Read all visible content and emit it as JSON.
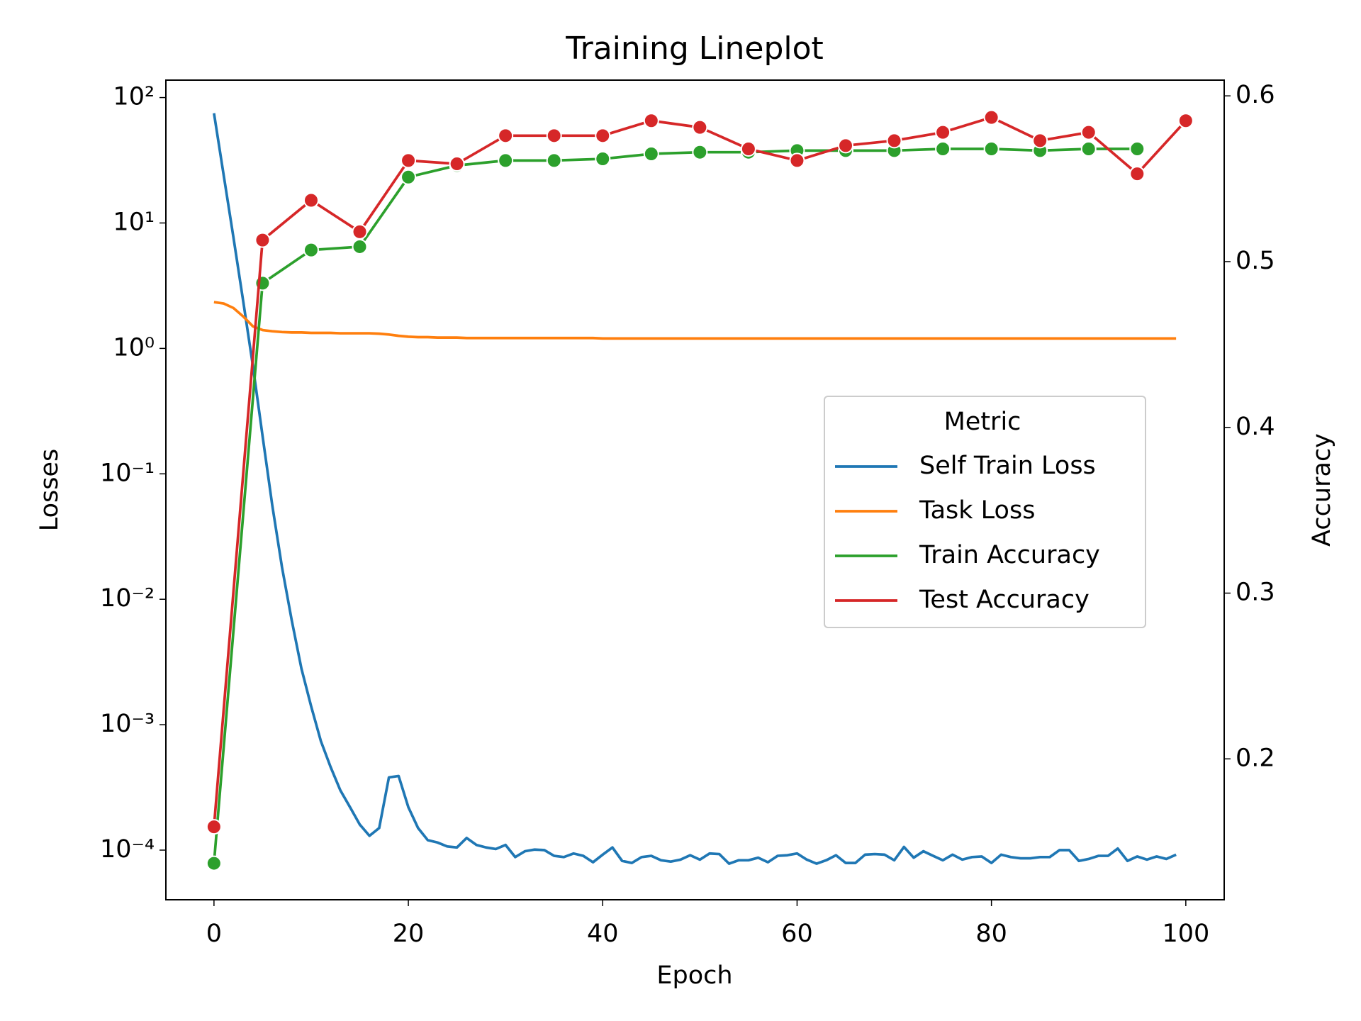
{
  "chart_data": {
    "type": "line",
    "title": "Training Lineplot",
    "xlabel": "Epoch",
    "ylabel": "Losses",
    "y2label": "Accuracy",
    "yscale": "log",
    "legend_title": "Metric",
    "legend_loc": "center right",
    "x": [
      0,
      1,
      2,
      3,
      4,
      5,
      6,
      7,
      8,
      9,
      10,
      11,
      12,
      13,
      14,
      15,
      16,
      17,
      18,
      19,
      20,
      21,
      22,
      23,
      24,
      25,
      26,
      27,
      28,
      29,
      30,
      31,
      32,
      33,
      34,
      35,
      36,
      37,
      38,
      39,
      40,
      41,
      42,
      43,
      44,
      45,
      46,
      47,
      48,
      49,
      50,
      51,
      52,
      53,
      54,
      55,
      56,
      57,
      58,
      59,
      60,
      61,
      62,
      63,
      64,
      65,
      66,
      67,
      68,
      69,
      70,
      71,
      72,
      73,
      74,
      75,
      76,
      77,
      78,
      79,
      80,
      81,
      82,
      83,
      84,
      85,
      86,
      87,
      88,
      89,
      90,
      91,
      92,
      93,
      94,
      95,
      96,
      97,
      98,
      99
    ],
    "xlim": [
      -4.95,
      103.95
    ],
    "xticks": [
      0,
      20,
      40,
      60,
      80,
      100
    ],
    "ylim": [
      4.02e-05,
      137.7
    ],
    "yticks": [
      {
        "value": 0.0001,
        "label": "10⁻⁴"
      },
      {
        "value": 0.001,
        "label": "10⁻³"
      },
      {
        "value": 0.01,
        "label": "10⁻²"
      },
      {
        "value": 0.1,
        "label": "10⁻¹"
      },
      {
        "value": 1,
        "label": "10⁰"
      },
      {
        "value": 10,
        "label": "10¹"
      },
      {
        "value": 100,
        "label": "10²"
      }
    ],
    "y2lim": [
      0.115,
      0.6095
    ],
    "y2ticks": [
      0.2,
      0.3,
      0.4,
      0.5,
      0.6
    ],
    "series": [
      {
        "name": "Self Train Loss",
        "color": "#1f77b4",
        "values": [
          75,
          24,
          7.7,
          2.4,
          0.73,
          0.2,
          0.056,
          0.018,
          0.0068,
          0.0028,
          0.0014,
          0.00074,
          0.00046,
          0.0003,
          0.00022,
          0.00016,
          0.00013,
          0.00015,
          0.00038,
          0.00039,
          0.00022,
          0.00015,
          0.00012,
          0.000115,
          0.000107,
          0.000105,
          0.000125,
          0.00011,
          0.000105,
          0.000102,
          0.00011,
          8.8e-05,
          9.8e-05,
          0.000101,
          0.0001,
          9e-05,
          8.8e-05,
          9.4e-05,
          9e-05,
          8e-05,
          9.2e-05,
          0.000105,
          8.2e-05,
          7.9e-05,
          8.8e-05,
          9e-05,
          8.3e-05,
          8.1e-05,
          8.4e-05,
          9.1e-05,
          8.4e-05,
          9.4e-05,
          9.3e-05,
          7.8e-05,
          8.3e-05,
          8.3e-05,
          8.7e-05,
          8e-05,
          9e-05,
          9.1e-05,
          9.4e-05,
          8.4e-05,
          7.8e-05,
          8.3e-05,
          9.1e-05,
          7.9e-05,
          7.9e-05,
          9.2e-05,
          9.3e-05,
          9.2e-05,
          8.3e-05,
          0.000106,
          8.7e-05,
          9.8e-05,
          9e-05,
          8.3e-05,
          9.2e-05,
          8.4e-05,
          8.8e-05,
          8.9e-05,
          7.9e-05,
          9.2e-05,
          8.8e-05,
          8.6e-05,
          8.6e-05,
          8.8e-05,
          8.8e-05,
          0.0001,
          0.0001,
          8.2e-05,
          8.5e-05,
          9e-05,
          9e-05,
          0.000103,
          8.2e-05,
          8.9e-05,
          8.4e-05,
          8.9e-05,
          8.5e-05,
          9.2e-05
        ]
      },
      {
        "name": "Task Loss",
        "color": "#ff7f0e",
        "values": [
          2.34,
          2.28,
          2.1,
          1.8,
          1.5,
          1.4,
          1.37,
          1.35,
          1.34,
          1.34,
          1.33,
          1.33,
          1.33,
          1.32,
          1.32,
          1.32,
          1.32,
          1.31,
          1.29,
          1.26,
          1.24,
          1.23,
          1.23,
          1.22,
          1.22,
          1.22,
          1.21,
          1.21,
          1.21,
          1.21,
          1.21,
          1.21,
          1.21,
          1.21,
          1.21,
          1.21,
          1.21,
          1.21,
          1.21,
          1.21,
          1.2,
          1.2,
          1.2,
          1.2,
          1.2,
          1.2,
          1.2,
          1.2,
          1.2,
          1.2,
          1.2,
          1.2,
          1.2,
          1.2,
          1.2,
          1.2,
          1.2,
          1.2,
          1.2,
          1.2,
          1.2,
          1.2,
          1.2,
          1.2,
          1.2,
          1.2,
          1.2,
          1.2,
          1.2,
          1.2,
          1.2,
          1.2,
          1.2,
          1.2,
          1.2,
          1.2,
          1.2,
          1.2,
          1.2,
          1.2,
          1.2,
          1.2,
          1.2,
          1.2,
          1.2,
          1.2,
          1.2,
          1.2,
          1.2,
          1.2,
          1.2,
          1.2,
          1.2,
          1.2,
          1.2,
          1.2,
          1.2,
          1.2,
          1.2,
          1.2
        ]
      },
      {
        "name": "Train Accuracy",
        "color": "#2ca02c",
        "axis": "y2",
        "marker": "o",
        "x": [
          0,
          5,
          10,
          15,
          20,
          25,
          30,
          35,
          40,
          45,
          50,
          55,
          60,
          65,
          70,
          75,
          80,
          85,
          90,
          95
        ],
        "values": [
          0.137,
          0.487,
          0.507,
          0.509,
          0.551,
          0.558,
          0.561,
          0.561,
          0.562,
          0.565,
          0.566,
          0.566,
          0.567,
          0.567,
          0.567,
          0.568,
          0.568,
          0.567,
          0.568,
          0.568
        ]
      },
      {
        "name": "Test Accuracy",
        "color": "#d62728",
        "axis": "y2",
        "marker": "o",
        "x": [
          0,
          5,
          10,
          15,
          20,
          25,
          30,
          35,
          40,
          45,
          50,
          55,
          60,
          65,
          70,
          75,
          80,
          85,
          90,
          95,
          100
        ],
        "values": [
          0.159,
          0.513,
          0.537,
          0.518,
          0.561,
          0.559,
          0.576,
          0.576,
          0.576,
          0.585,
          0.581,
          0.568,
          0.561,
          0.57,
          0.573,
          0.578,
          0.587,
          0.573,
          0.578,
          0.553,
          0.585
        ]
      }
    ]
  }
}
